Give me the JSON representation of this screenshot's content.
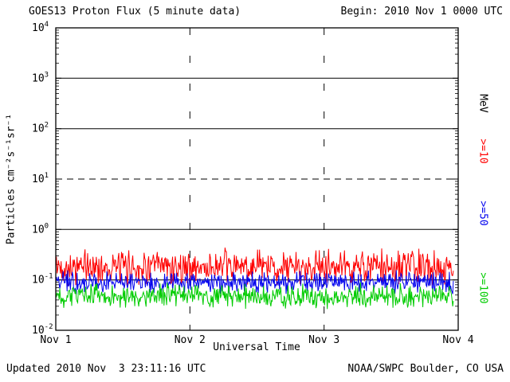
{
  "header": {
    "title": "GOES13 Proton Flux (5 minute data)",
    "begin": "Begin: 2010 Nov 1 0000 UTC"
  },
  "footer": {
    "updated": "Updated 2010 Nov  3 23:11:16 UTC",
    "source": "NOAA/SWPC Boulder, CO USA"
  },
  "chart_data": {
    "type": "line",
    "title": "GOES13 Proton Flux (5 minute data)",
    "xlabel": "Universal Time",
    "ylabel": "Particles cm⁻²s⁻¹sr⁻¹",
    "right_axis_label": "MeV",
    "ylog": true,
    "ylim": [
      0.01,
      10000
    ],
    "ytick_exponents": [
      4,
      3,
      2,
      1,
      0,
      -1,
      -2
    ],
    "xticklabels": [
      "Nov 1",
      "Nov 2",
      "Nov 3",
      "Nov 4"
    ],
    "x_span_days": 3,
    "data_end_fraction": 0.988,
    "solid_gridlines": [
      1000,
      100,
      1,
      0.1
    ],
    "dashed_gridlines": [
      10
    ],
    "vertical_dotted_gridline_days": [
      1,
      2
    ],
    "grid": true,
    "legend_position": "right-rotated",
    "colors": {
      "axis": "#000000",
      "background": "#ffffff"
    },
    "series": [
      {
        "name": ">=10",
        "color": "#ff0000",
        "mean_flux": 0.16,
        "min_flux": 0.07,
        "max_flux": 0.45
      },
      {
        "name": ">=50",
        "color": "#0000ee",
        "mean_flux": 0.09,
        "min_flux": 0.05,
        "max_flux": 0.16
      },
      {
        "name": ">=100",
        "color": "#00cc00",
        "mean_flux": 0.047,
        "min_flux": 0.025,
        "max_flux": 0.09
      }
    ],
    "points_per_series": 600,
    "seed": 42
  }
}
